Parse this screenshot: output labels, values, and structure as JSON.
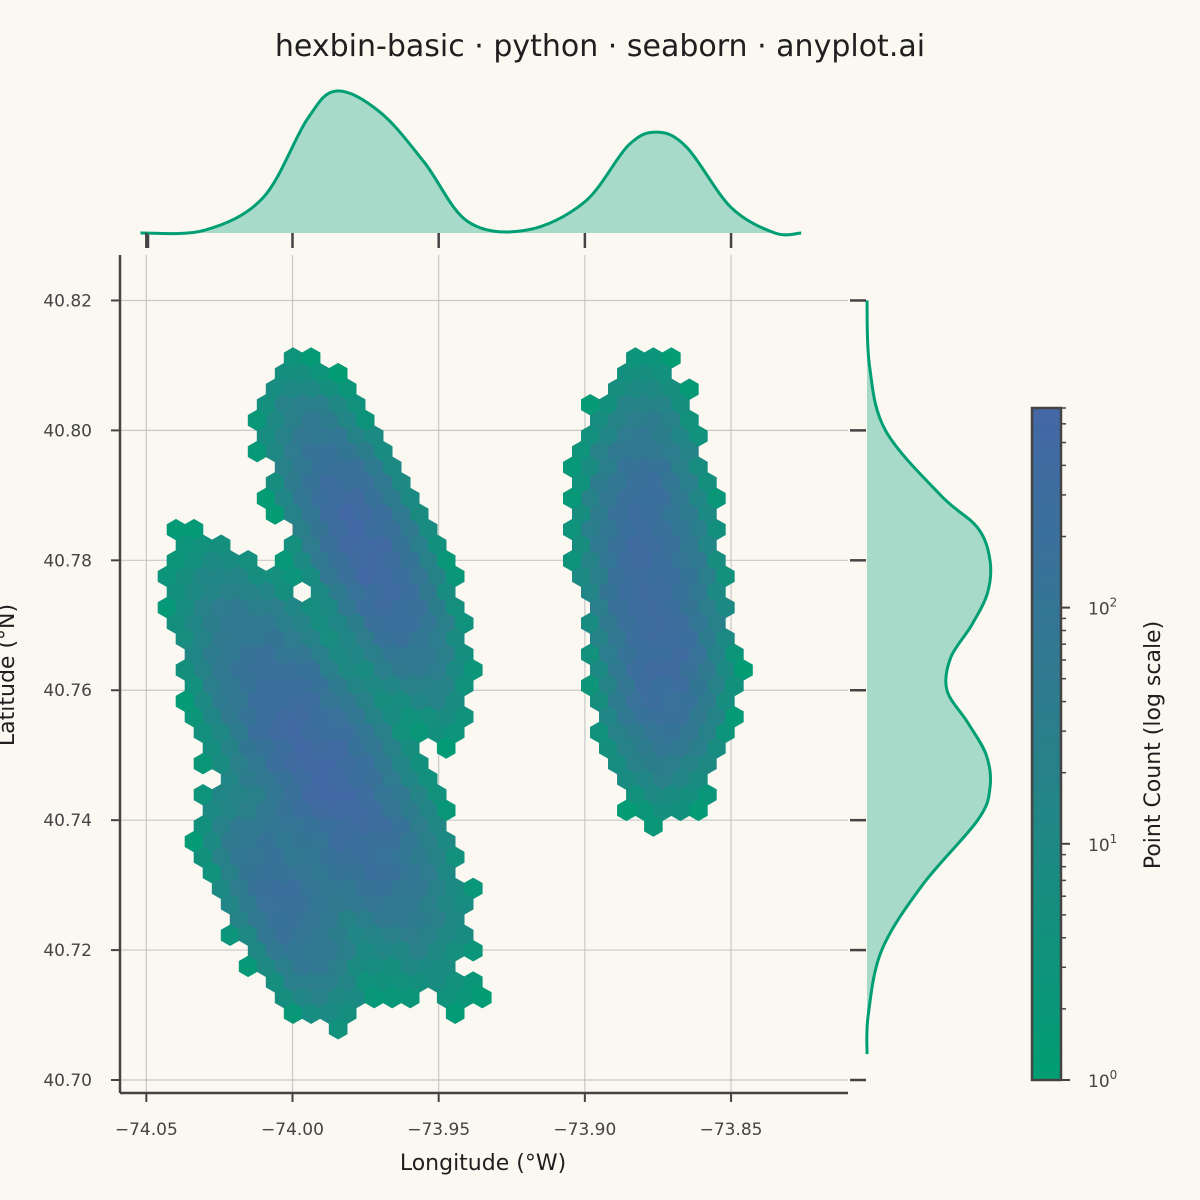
{
  "chart_data": {
    "type": "hexbin",
    "title": "hexbin-basic · python · seaborn · anyplot.ai",
    "xlabel": "Longitude (°W)",
    "ylabel": "Latitude (°N)",
    "colorbar_label": "Point Count (log scale)",
    "xlim": [
      -74.059,
      -73.81
    ],
    "ylim": [
      40.698,
      40.827
    ],
    "x_ticks": [
      -74.05,
      -74.0,
      -73.95,
      -73.9,
      -73.85
    ],
    "x_tick_labels": [
      "−74.05",
      "−74.00",
      "−73.95",
      "−73.90",
      "−73.85"
    ],
    "y_ticks": [
      40.7,
      40.72,
      40.74,
      40.76,
      40.78,
      40.8,
      40.82
    ],
    "y_tick_labels": [
      "40.70",
      "40.72",
      "40.74",
      "40.76",
      "40.78",
      "40.80",
      "40.82"
    ],
    "colorbar": {
      "scale": "log",
      "range": [
        1,
        700
      ],
      "ticks": [
        {
          "value": 1,
          "base": "10",
          "exp": "0"
        },
        {
          "value": 10,
          "base": "10",
          "exp": "1"
        },
        {
          "value": 100,
          "base": "10",
          "exp": "2"
        }
      ],
      "colors": [
        "#009E73",
        "#2A7F8A",
        "#4467A6"
      ]
    },
    "clusters": [
      {
        "x": -73.975,
        "y": 40.782,
        "sx": 0.008,
        "sy": 0.009,
        "ax": -0.008,
        "peak": 500
      },
      {
        "x": -73.99,
        "y": 40.748,
        "sx": 0.011,
        "sy": 0.011,
        "ax": -0.012,
        "peak": 500
      },
      {
        "x": -74.003,
        "y": 40.728,
        "sx": 0.008,
        "sy": 0.007,
        "ax": -0.006,
        "peak": 200
      },
      {
        "x": -73.88,
        "y": 40.783,
        "sx": 0.008,
        "sy": 0.009,
        "ax": 0.0,
        "peak": 300
      },
      {
        "x": -73.873,
        "y": 40.765,
        "sx": 0.008,
        "sy": 0.008,
        "ax": 0.0,
        "peak": 350
      }
    ],
    "marginal_x": {
      "x": [
        -74.052,
        -74.03,
        -74.01,
        -73.995,
        -73.985,
        -73.97,
        -73.955,
        -73.94,
        -73.92,
        -73.9,
        -73.885,
        -73.875,
        -73.865,
        -73.85,
        -73.835,
        -73.826
      ],
      "density": [
        0.0,
        0.02,
        0.25,
        0.8,
        1.0,
        0.85,
        0.5,
        0.08,
        0.02,
        0.22,
        0.62,
        0.71,
        0.6,
        0.18,
        0.0,
        0.0
      ]
    },
    "marginal_y": {
      "y": [
        40.704,
        40.71,
        40.72,
        40.73,
        40.74,
        40.745,
        40.75,
        40.755,
        40.76,
        40.765,
        40.77,
        40.775,
        40.78,
        40.785,
        40.79,
        40.8,
        40.81,
        40.82
      ],
      "density": [
        0.0,
        0.01,
        0.12,
        0.45,
        0.9,
        1.0,
        0.97,
        0.82,
        0.65,
        0.68,
        0.85,
        0.98,
        1.0,
        0.9,
        0.6,
        0.15,
        0.02,
        0.0
      ]
    },
    "colors": {
      "background": "#FAF8F1",
      "marginal_line": "#009E73",
      "marginal_fill": "#A7DAC8",
      "grid": "#BDBDBD",
      "axis": "#444444"
    }
  }
}
